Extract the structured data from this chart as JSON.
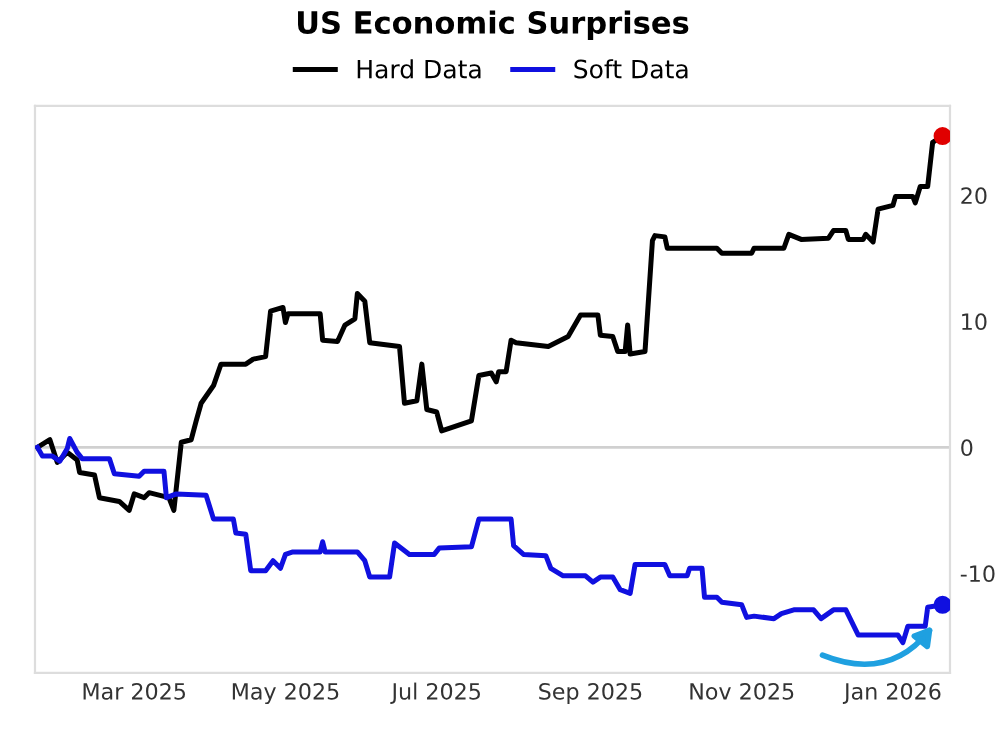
{
  "chart_data": {
    "type": "line",
    "title": "US Economic Surprises",
    "series": [
      {
        "name": "Hard Data",
        "color": "#000000",
        "x": [
          "2025-01-21",
          "2025-01-26",
          "2025-01-29",
          "2025-02-02",
          "2025-02-06",
          "2025-02-07",
          "2025-02-13",
          "2025-02-15",
          "2025-02-23",
          "2025-02-27",
          "2025-03-01",
          "2025-03-05",
          "2025-03-07",
          "2025-03-15",
          "2025-03-17",
          "2025-03-20",
          "2025-03-24",
          "2025-03-26",
          "2025-03-28",
          "2025-04-02",
          "2025-04-05",
          "2025-04-15",
          "2025-04-18",
          "2025-04-23",
          "2025-04-25",
          "2025-04-30",
          "2025-05-01",
          "2025-05-02",
          "2025-05-15",
          "2025-05-16",
          "2025-05-22",
          "2025-05-25",
          "2025-05-29",
          "2025-05-30",
          "2025-06-02",
          "2025-06-04",
          "2025-06-16",
          "2025-06-18",
          "2025-06-23",
          "2025-06-25",
          "2025-06-27",
          "2025-07-01",
          "2025-07-03",
          "2025-07-15",
          "2025-07-18",
          "2025-07-23",
          "2025-07-25",
          "2025-07-26",
          "2025-07-29",
          "2025-07-31",
          "2025-08-02",
          "2025-08-15",
          "2025-08-23",
          "2025-08-28",
          "2025-09-04",
          "2025-09-05",
          "2025-09-10",
          "2025-09-12",
          "2025-09-15",
          "2025-09-16",
          "2025-09-17",
          "2025-09-23",
          "2025-09-26",
          "2025-09-27",
          "2025-10-01",
          "2025-10-02",
          "2025-10-22",
          "2025-10-24",
          "2025-11-05",
          "2025-11-06",
          "2025-11-18",
          "2025-11-20",
          "2025-11-25",
          "2025-12-06",
          "2025-12-08",
          "2025-12-13",
          "2025-12-14",
          "2025-12-20",
          "2025-12-21",
          "2025-12-24",
          "2025-12-26",
          "2026-01-01",
          "2026-01-02",
          "2026-01-09",
          "2026-01-10",
          "2026-01-12",
          "2026-01-15",
          "2026-01-17",
          "2026-01-21"
        ],
        "values": [
          0,
          0.6,
          -1.2,
          -0.4,
          -1.0,
          -2.0,
          -2.2,
          -4.0,
          -4.3,
          -5.0,
          -3.7,
          -4.0,
          -3.6,
          -4.0,
          -5.0,
          0.4,
          0.6,
          2.1,
          3.5,
          4.9,
          6.6,
          6.6,
          7.0,
          7.2,
          10.8,
          11.1,
          9.9,
          10.6,
          10.6,
          8.5,
          8.4,
          9.7,
          10.2,
          12.2,
          11.6,
          8.3,
          8.0,
          3.5,
          3.7,
          6.6,
          3.0,
          2.8,
          1.3,
          2.1,
          5.7,
          5.9,
          5.2,
          6.0,
          6.0,
          8.5,
          8.3,
          8.0,
          8.8,
          10.5,
          10.5,
          8.9,
          8.8,
          7.6,
          7.6,
          9.7,
          7.4,
          7.6,
          16.4,
          16.8,
          16.7,
          15.8,
          15.8,
          15.4,
          15.4,
          15.8,
          15.8,
          16.9,
          16.5,
          16.6,
          17.2,
          17.2,
          16.5,
          16.5,
          16.9,
          16.3,
          18.9,
          19.2,
          19.9,
          19.9,
          19.4,
          20.7,
          20.7,
          24.2,
          24.7
        ]
      },
      {
        "name": "Soft Data",
        "color": "#1010e0",
        "x": [
          "2025-01-21",
          "2025-01-23",
          "2025-01-27",
          "2025-01-30",
          "2025-02-02",
          "2025-02-03",
          "2025-02-06",
          "2025-02-08",
          "2025-02-19",
          "2025-02-21",
          "2025-03-03",
          "2025-03-05",
          "2025-03-13",
          "2025-03-14",
          "2025-03-18",
          "2025-03-30",
          "2025-04-02",
          "2025-04-10",
          "2025-04-11",
          "2025-04-15",
          "2025-04-17",
          "2025-04-23",
          "2025-04-26",
          "2025-04-29",
          "2025-05-01",
          "2025-05-04",
          "2025-05-15",
          "2025-05-16",
          "2025-05-17",
          "2025-05-30",
          "2025-06-02",
          "2025-06-04",
          "2025-06-12",
          "2025-06-14",
          "2025-06-20",
          "2025-06-30",
          "2025-07-02",
          "2025-07-15",
          "2025-07-18",
          "2025-07-31",
          "2025-08-01",
          "2025-08-05",
          "2025-08-14",
          "2025-08-16",
          "2025-08-21",
          "2025-08-30",
          "2025-09-02",
          "2025-09-05",
          "2025-09-10",
          "2025-09-13",
          "2025-09-17",
          "2025-09-19",
          "2025-10-01",
          "2025-10-03",
          "2025-10-10",
          "2025-10-11",
          "2025-10-16",
          "2025-10-17",
          "2025-10-22",
          "2025-10-24",
          "2025-11-01",
          "2025-11-03",
          "2025-11-06",
          "2025-11-14",
          "2025-11-17",
          "2025-11-22",
          "2025-11-30",
          "2025-12-03",
          "2025-12-08",
          "2025-12-13",
          "2025-12-18",
          "2026-01-03",
          "2026-01-05",
          "2026-01-07",
          "2026-01-14",
          "2026-01-15",
          "2026-01-21"
        ],
        "values": [
          0,
          -0.7,
          -0.7,
          -1.1,
          -0.1,
          0.7,
          -0.4,
          -0.9,
          -0.9,
          -2.1,
          -2.3,
          -1.9,
          -1.9,
          -4.0,
          -3.7,
          -3.8,
          -5.7,
          -5.7,
          -6.8,
          -6.9,
          -9.8,
          -9.8,
          -9.0,
          -9.6,
          -8.5,
          -8.3,
          -8.3,
          -7.5,
          -8.3,
          -8.3,
          -9.0,
          -10.3,
          -10.3,
          -7.6,
          -8.5,
          -8.5,
          -8.0,
          -7.9,
          -5.7,
          -5.7,
          -7.8,
          -8.5,
          -8.6,
          -9.6,
          -10.2,
          -10.2,
          -10.7,
          -10.3,
          -10.3,
          -11.3,
          -11.6,
          -9.3,
          -9.3,
          -10.2,
          -10.2,
          -9.6,
          -9.6,
          -11.9,
          -11.9,
          -12.3,
          -12.5,
          -13.5,
          -13.4,
          -13.6,
          -13.2,
          -12.9,
          -12.9,
          -13.6,
          -12.9,
          -12.9,
          -14.9,
          -14.9,
          -15.5,
          -14.2,
          -14.2,
          -12.7,
          -12.5
        ]
      },
      {
        "type": "scatter",
        "marker": "circle",
        "color": "#e00000",
        "x": [
          "2026-01-21"
        ],
        "values": [
          24.7
        ]
      },
      {
        "type": "scatter",
        "marker": "circle",
        "color": "#1010e0",
        "x": [
          "2026-01-21"
        ],
        "values": [
          -12.5
        ]
      }
    ],
    "xlim": [
      "2025-01-20",
      "2026-01-24"
    ],
    "xticks": [
      {
        "value": "2025-03-01",
        "label": "Mar 2025"
      },
      {
        "value": "2025-05-01",
        "label": "May 2025"
      },
      {
        "value": "2025-07-01",
        "label": "Jul 2025"
      },
      {
        "value": "2025-09-01",
        "label": "Sep 2025"
      },
      {
        "value": "2025-11-01",
        "label": "Nov 2025"
      },
      {
        "value": "2026-01-01",
        "label": "Jan 2026"
      }
    ],
    "ylim": [
      -17.9,
      27.1
    ],
    "yticks": [
      -10,
      0,
      10,
      20
    ],
    "ref_lines": [
      {
        "axis": "y",
        "value": 0,
        "color": "#d0d0d0"
      }
    ],
    "grid": false,
    "legend": "top",
    "marker": "none",
    "line_style": "solid"
  }
}
